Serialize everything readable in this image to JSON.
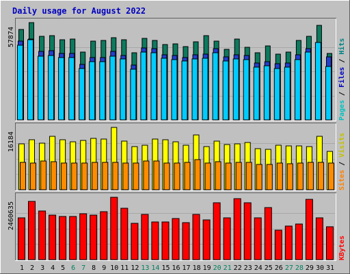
{
  "chart_data": {
    "type": "bar",
    "title": "Daily usage for August 2022",
    "categories": [
      "1",
      "2",
      "3",
      "4",
      "5",
      "6",
      "7",
      "8",
      "9",
      "10",
      "11",
      "12",
      "13",
      "14",
      "15",
      "16",
      "17",
      "18",
      "19",
      "20",
      "21",
      "22",
      "23",
      "24",
      "25",
      "26",
      "27",
      "28",
      "29",
      "30",
      "31"
    ],
    "weekend_days": [
      "6",
      "7",
      "13",
      "14",
      "20",
      "21",
      "27",
      "28"
    ],
    "grid": true,
    "panels": [
      {
        "id": "hits",
        "max_label": "57874",
        "ymax": 57874,
        "legend": [
          "Hits",
          "Files",
          "Pages"
        ],
        "legend_colors": [
          "#008080",
          "#0000c0",
          "#00c0c0"
        ],
        "series": [
          {
            "name": "Hits",
            "color": "#0d7a5e",
            "values": [
              53600,
              57874,
              49600,
              50100,
              47700,
              47900,
              40300,
              46800,
              47400,
              48800,
              47600,
              39900,
              48500,
              47200,
              45000,
              45300,
              43800,
              46500,
              50200,
              47000,
              41900,
              48200,
              43100,
              39800,
              43900,
              39200,
              40300,
              47200,
              49600,
              56100,
              39700
            ]
          },
          {
            "name": "Files",
            "color": "#2040d0",
            "values": [
              47000,
              48200,
              40700,
              41000,
              39400,
              39600,
              33000,
              36900,
              37000,
              40800,
              38400,
              32800,
              42700,
              42300,
              38900,
              38300,
              37200,
              38800,
              39300,
              42500,
              37300,
              38700,
              38200,
              33800,
              34700,
              33300,
              33700,
              38600,
              42500,
              41800,
              37500
            ]
          },
          {
            "name": "Pages",
            "color": "#00ccff",
            "values": [
              44400,
              47500,
              38100,
              38300,
              36900,
              37000,
              30500,
              34600,
              34500,
              38100,
              36200,
              30000,
              40400,
              39900,
              36500,
              36000,
              34900,
              36400,
              36500,
              40000,
              35000,
              36100,
              35900,
              31400,
              32400,
              30700,
              31300,
              36000,
              40200,
              45900,
              31700
            ]
          }
        ]
      },
      {
        "id": "visits",
        "max_label": "16184",
        "ymax": 16184,
        "legend": [
          "Visits",
          "Sites"
        ],
        "legend_colors": [
          "#c0c000",
          "#ff8000"
        ],
        "series": [
          {
            "name": "Visits",
            "color": "#ffff00",
            "values": [
              11900,
              12900,
              12100,
              13800,
              13000,
              12400,
              12800,
              13300,
              13200,
              16184,
              12600,
              11200,
              11600,
              13100,
              12900,
              12500,
              11600,
              14200,
              11200,
              12700,
              11800,
              11900,
              12200,
              10600,
              10500,
              11600,
              11300,
              11300,
              11200,
              13900,
              9900
            ]
          },
          {
            "name": "Sites",
            "color": "#ff8c00",
            "values": [
              7200,
              7000,
              7400,
              7300,
              7000,
              7000,
              6900,
              7200,
              7100,
              7100,
              6900,
              6900,
              7500,
              7400,
              7000,
              7000,
              7100,
              7900,
              7000,
              7300,
              7000,
              7200,
              7100,
              6500,
              6600,
              6900,
              6700,
              7000,
              7200,
              7200,
              7000
            ]
          }
        ]
      },
      {
        "id": "kbytes",
        "max_label": "2460635",
        "ymax": 2460635,
        "legend": [
          "KBytes"
        ],
        "legend_colors": [
          "#ff0000"
        ],
        "series": [
          {
            "name": "KBytes",
            "color": "#ff0000",
            "values": [
              1650000,
              2300000,
              1910000,
              1770000,
              1710000,
              1710000,
              1800000,
              1760000,
              1890000,
              2460635,
              2040000,
              1420000,
              1790000,
              1490000,
              1490000,
              1630000,
              1460000,
              1780000,
              1580000,
              2240000,
              1640000,
              2420000,
              2240000,
              1650000,
              2050000,
              1150000,
              1320000,
              1410000,
              2380000,
              1660000,
              1300000
            ]
          }
        ]
      }
    ]
  }
}
